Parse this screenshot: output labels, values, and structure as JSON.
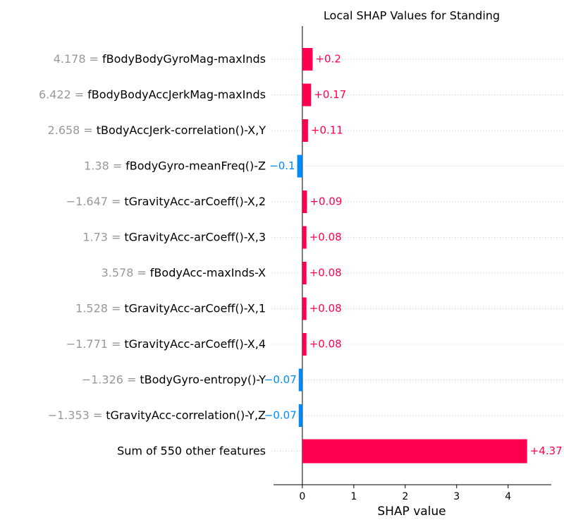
{
  "chart_data": {
    "type": "bar",
    "orientation": "horizontal",
    "title": "Local SHAP Values for Standing",
    "xlabel": "SHAP value",
    "categories": [
      "fBodyBodyGyroMag-maxInds",
      "fBodyBodyAccJerkMag-maxInds",
      "tBodyAccJerk-correlation()-X,Y",
      "fBodyGyro-meanFreq()-Z",
      "tGravityAcc-arCoeff()-X,2",
      "tGravityAcc-arCoeff()-X,3",
      "fBodyAcc-maxInds-X",
      "tGravityAcc-arCoeff()-X,1",
      "tGravityAcc-arCoeff()-X,4",
      "tBodyGyro-entropy()-Y",
      "tGravityAcc-correlation()-Y,Z",
      "Sum of 550 other features"
    ],
    "feature_values": [
      "4.178",
      "6.422",
      "2.658",
      "1.38",
      "−1.647",
      "1.73",
      "3.578",
      "1.528",
      "−1.771",
      "−1.326",
      "−1.353",
      null
    ],
    "value_separator": "=",
    "values": [
      0.2,
      0.17,
      0.11,
      -0.1,
      0.09,
      0.08,
      0.08,
      0.08,
      0.08,
      -0.07,
      -0.07,
      4.37
    ],
    "value_labels": [
      "+0.2",
      "+0.17",
      "+0.11",
      "−0.1",
      "+0.09",
      "+0.08",
      "+0.08",
      "+0.08",
      "+0.08",
      "−0.07",
      "−0.07",
      "+4.37"
    ],
    "positive_color": "#ff0051",
    "negative_color": "#008bfb",
    "xlim": [
      -0.56,
      4.84
    ],
    "xticks": [
      0,
      1,
      2,
      3,
      4
    ],
    "grid": true
  }
}
